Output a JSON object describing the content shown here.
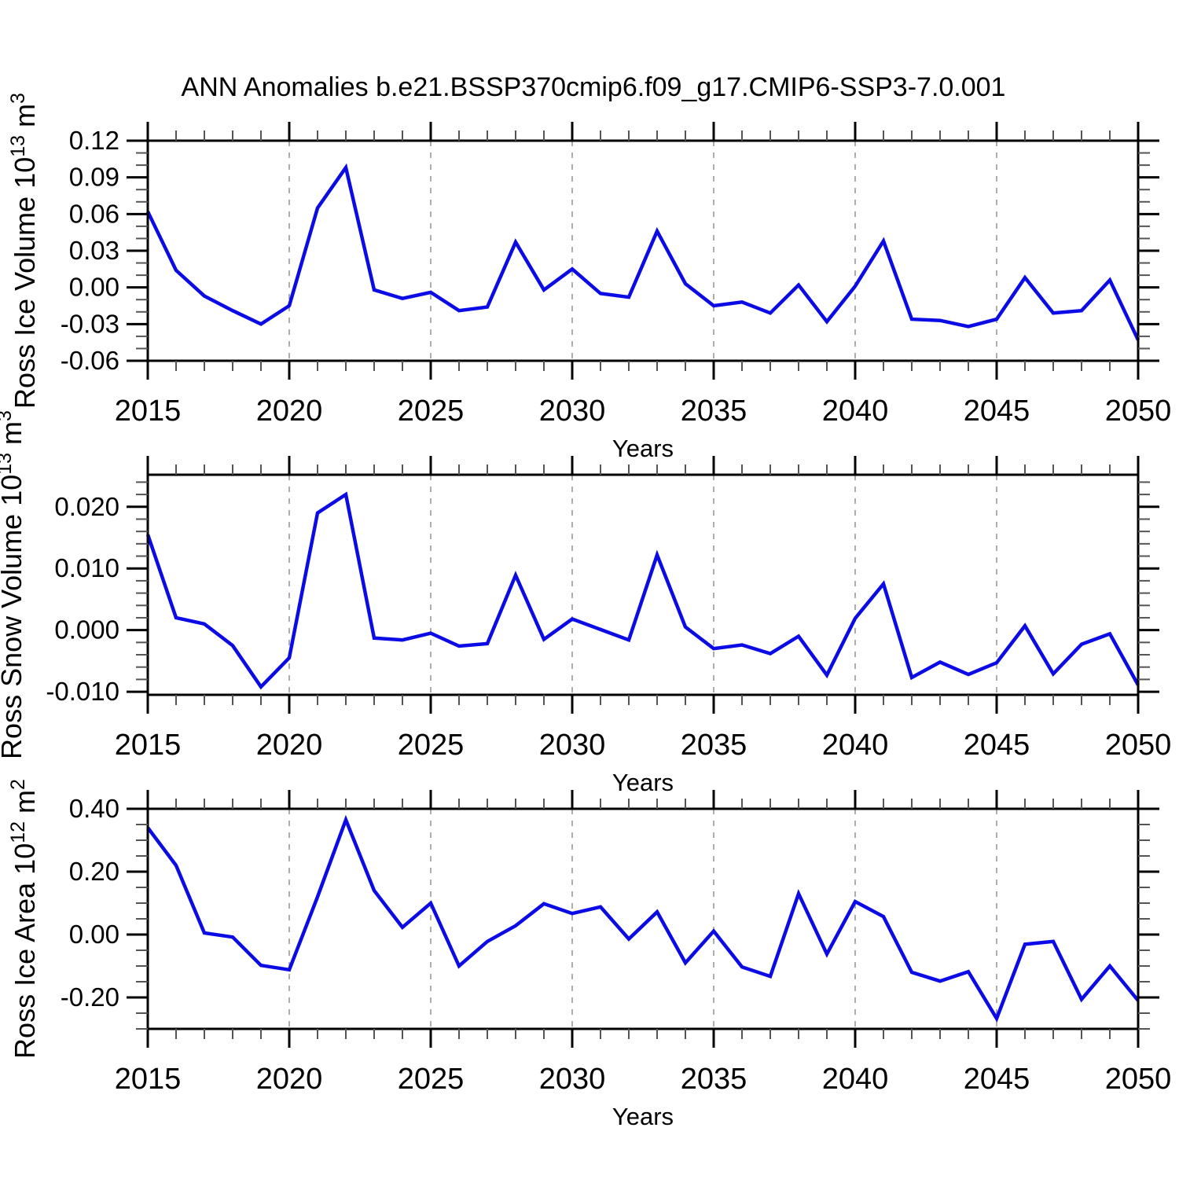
{
  "title": "ANN Anomalies b.e21.BSSP370cmip6.f09_g17.CMIP6-SSP3-7.0.001",
  "colors": {
    "line": "#0b0be6",
    "grid": "#999999",
    "axis": "#000000",
    "minor_tick": "#555555",
    "background": "#ffffff"
  },
  "chart_data": [
    {
      "type": "line",
      "name": "ross-ice-volume",
      "ylabel_runs": [
        {
          "t": "Ross Ice Volume 10"
        },
        {
          "t": "13",
          "sup": true
        },
        {
          "t": " m"
        },
        {
          "t": "3",
          "sup": true
        }
      ],
      "xlabel": "Years",
      "legend": "none",
      "grid": "vertical-dashed",
      "xlim": [
        2015,
        2050
      ],
      "ylim": [
        -0.06,
        0.12
      ],
      "x_minor_step": 1,
      "y_minor_step": 0.01,
      "grid_x": [
        2020,
        2025,
        2030,
        2035,
        2040,
        2045
      ],
      "x_major_ticks": [
        {
          "v": 2015,
          "label": "2015"
        },
        {
          "v": 2020,
          "label": "2020"
        },
        {
          "v": 2025,
          "label": "2025"
        },
        {
          "v": 2030,
          "label": "2030"
        },
        {
          "v": 2035,
          "label": "2035"
        },
        {
          "v": 2040,
          "label": "2040"
        },
        {
          "v": 2045,
          "label": "2045"
        },
        {
          "v": 2050,
          "label": "2050"
        }
      ],
      "y_major_ticks": [
        {
          "v": 0.12,
          "label": "0.12"
        },
        {
          "v": 0.09,
          "label": "0.09"
        },
        {
          "v": 0.06,
          "label": "0.06"
        },
        {
          "v": 0.03,
          "label": "0.03"
        },
        {
          "v": 0.0,
          "label": "0.00"
        },
        {
          "v": -0.03,
          "label": "-0.03"
        },
        {
          "v": -0.06,
          "label": "-0.06"
        }
      ],
      "x": [
        2015,
        2016,
        2017,
        2018,
        2019,
        2020,
        2021,
        2022,
        2023,
        2024,
        2025,
        2026,
        2027,
        2028,
        2029,
        2030,
        2031,
        2032,
        2033,
        2034,
        2035,
        2036,
        2037,
        2038,
        2039,
        2040,
        2041,
        2042,
        2043,
        2044,
        2045,
        2046,
        2047,
        2048,
        2049,
        2050
      ],
      "values": [
        0.062,
        0.014,
        -0.007,
        -0.019,
        -0.03,
        -0.015,
        0.065,
        0.098,
        -0.002,
        -0.009,
        -0.004,
        -0.019,
        -0.016,
        0.037,
        -0.002,
        0.015,
        -0.005,
        -0.008,
        0.046,
        0.003,
        -0.015,
        -0.012,
        -0.021,
        0.002,
        -0.028,
        0.001,
        0.038,
        -0.026,
        -0.027,
        -0.032,
        -0.026,
        0.008,
        -0.021,
        -0.019,
        0.006,
        -0.043
      ]
    },
    {
      "type": "line",
      "name": "ross-snow-volume",
      "ylabel_runs": [
        {
          "t": "Ross Snow Volume 10"
        },
        {
          "t": "13",
          "sup": true
        },
        {
          "t": " m"
        },
        {
          "t": "3",
          "sup": true
        }
      ],
      "xlabel": "Years",
      "legend": "none",
      "grid": "vertical-dashed",
      "xlim": [
        2015,
        2050
      ],
      "ylim": [
        -0.0105,
        0.0252
      ],
      "x_minor_step": 1,
      "y_minor_step": 0.002,
      "grid_x": [
        2020,
        2025,
        2030,
        2035,
        2040,
        2045
      ],
      "x_major_ticks": [
        {
          "v": 2015,
          "label": "2015"
        },
        {
          "v": 2020,
          "label": "2020"
        },
        {
          "v": 2025,
          "label": "2025"
        },
        {
          "v": 2030,
          "label": "2030"
        },
        {
          "v": 2035,
          "label": "2035"
        },
        {
          "v": 2040,
          "label": "2040"
        },
        {
          "v": 2045,
          "label": "2045"
        },
        {
          "v": 2050,
          "label": "2050"
        }
      ],
      "y_major_ticks": [
        {
          "v": 0.02,
          "label": "0.020"
        },
        {
          "v": 0.01,
          "label": "0.010"
        },
        {
          "v": 0.0,
          "label": "0.000"
        },
        {
          "v": -0.01,
          "label": "-0.010"
        }
      ],
      "x": [
        2015,
        2016,
        2017,
        2018,
        2019,
        2020,
        2021,
        2022,
        2023,
        2024,
        2025,
        2026,
        2027,
        2028,
        2029,
        2030,
        2031,
        2032,
        2033,
        2034,
        2035,
        2036,
        2037,
        2038,
        2039,
        2040,
        2041,
        2042,
        2043,
        2044,
        2045,
        2046,
        2047,
        2048,
        2049,
        2050
      ],
      "values": [
        0.0155,
        0.002,
        0.001,
        -0.0025,
        -0.0092,
        -0.0045,
        0.019,
        0.022,
        -0.0013,
        -0.0016,
        -0.0005,
        -0.0026,
        -0.0022,
        0.0089,
        -0.0015,
        0.0018,
        0.0001,
        -0.0016,
        0.0122,
        0.0005,
        -0.003,
        -0.0024,
        -0.0038,
        -0.001,
        -0.0073,
        0.0019,
        0.0075,
        -0.0077,
        -0.0052,
        -0.0072,
        -0.0053,
        0.0007,
        -0.0071,
        -0.0023,
        -0.0006,
        -0.0089
      ]
    },
    {
      "type": "line",
      "name": "ross-ice-area",
      "ylabel_runs": [
        {
          "t": "Ross Ice Area 10"
        },
        {
          "t": "12",
          "sup": true
        },
        {
          "t": " m"
        },
        {
          "t": "2",
          "sup": true
        }
      ],
      "xlabel": "Years",
      "legend": "none",
      "grid": "vertical-dashed",
      "xlim": [
        2015,
        2050
      ],
      "ylim": [
        -0.3,
        0.4
      ],
      "x_minor_step": 1,
      "y_minor_step": 0.05,
      "grid_x": [
        2020,
        2025,
        2030,
        2035,
        2040,
        2045
      ],
      "x_major_ticks": [
        {
          "v": 2015,
          "label": "2015"
        },
        {
          "v": 2020,
          "label": "2020"
        },
        {
          "v": 2025,
          "label": "2025"
        },
        {
          "v": 2030,
          "label": "2030"
        },
        {
          "v": 2035,
          "label": "2035"
        },
        {
          "v": 2040,
          "label": "2040"
        },
        {
          "v": 2045,
          "label": "2045"
        },
        {
          "v": 2050,
          "label": "2050"
        }
      ],
      "y_major_ticks": [
        {
          "v": 0.4,
          "label": "0.40"
        },
        {
          "v": 0.2,
          "label": "0.20"
        },
        {
          "v": 0.0,
          "label": "0.00"
        },
        {
          "v": -0.2,
          "label": "-0.20"
        }
      ],
      "x": [
        2015,
        2016,
        2017,
        2018,
        2019,
        2020,
        2021,
        2022,
        2023,
        2024,
        2025,
        2026,
        2027,
        2028,
        2029,
        2030,
        2031,
        2032,
        2033,
        2034,
        2035,
        2036,
        2037,
        2038,
        2039,
        2040,
        2041,
        2042,
        2043,
        2044,
        2045,
        2046,
        2047,
        2048,
        2049,
        2050
      ],
      "values": [
        0.34,
        0.22,
        0.005,
        -0.008,
        -0.098,
        -0.112,
        0.12,
        0.365,
        0.14,
        0.023,
        0.1,
        -0.1,
        -0.022,
        0.028,
        0.098,
        0.067,
        0.088,
        -0.014,
        0.072,
        -0.09,
        0.011,
        -0.103,
        -0.133,
        0.13,
        -0.062,
        0.105,
        0.057,
        -0.12,
        -0.148,
        -0.118,
        -0.267,
        -0.031,
        -0.022,
        -0.206,
        -0.1,
        -0.21
      ]
    }
  ]
}
